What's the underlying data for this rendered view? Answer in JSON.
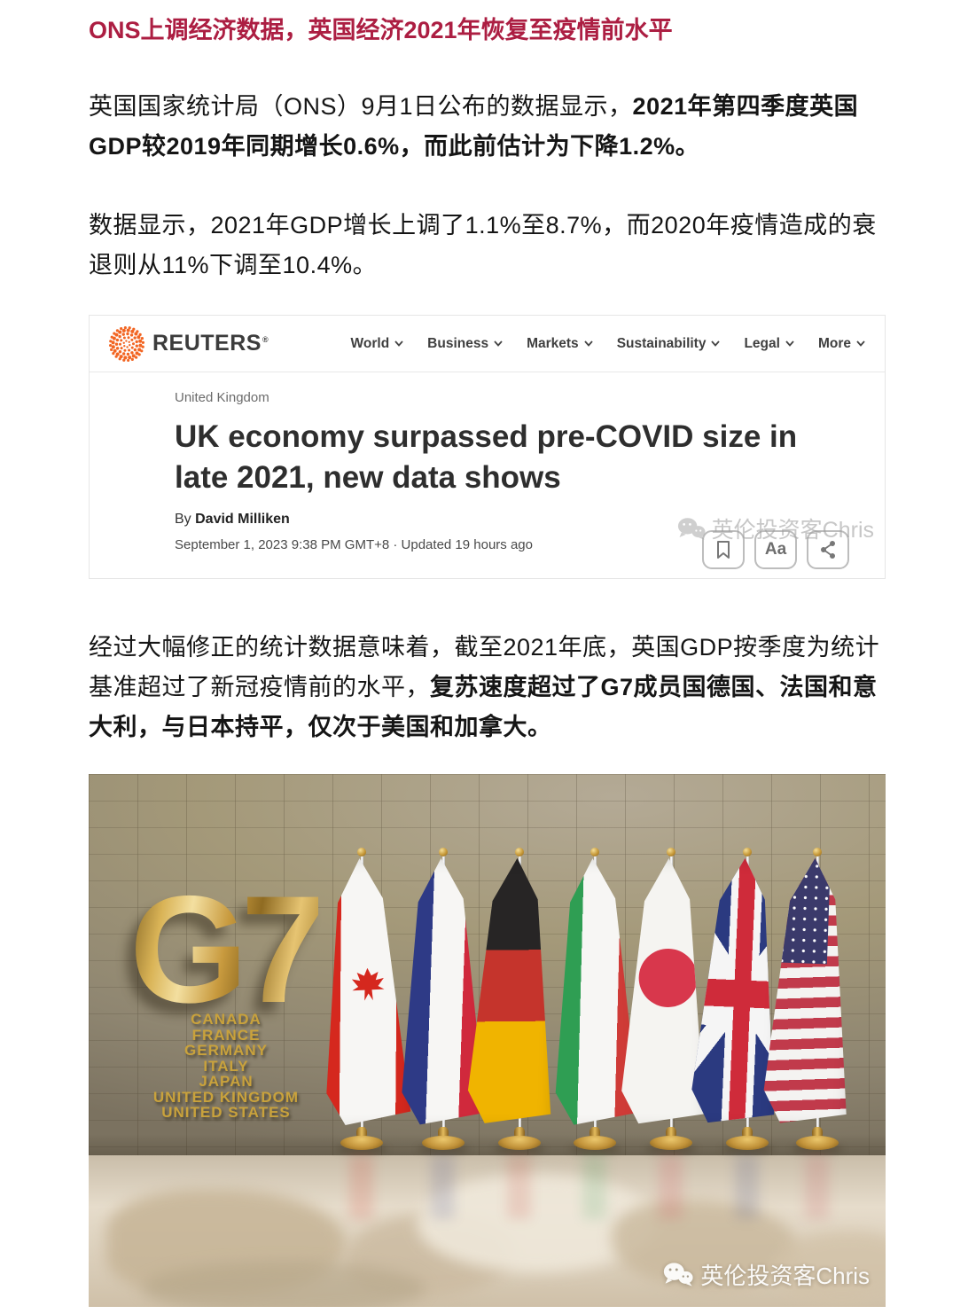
{
  "article": {
    "title": "ONS上调经济数据，英国经济2021年恢复至疫情前水平",
    "paragraphs": [
      {
        "regular": "英国国家统计局（ONS）9月1日公布的数据显示，",
        "bold": "2021年第四季度英国GDP较2019年同期增长0.6%，而此前估计为下降1.2%。"
      },
      {
        "regular": "数据显示，2021年GDP增长上调了1.1%至8.7%，而2020年疫情造成的衰退则从11%下调至10.4%。",
        "bold": ""
      },
      {
        "regular": "经过大幅修正的统计数据意味着，截至2021年底，英国GDP按季度为统计基准超过了新冠疫情前的水平，",
        "bold": "复苏速度超过了G7成员国德国、法国和意大利，与日本持平，仅次于美国和加拿大。"
      }
    ]
  },
  "reuters": {
    "brand": "REUTERS",
    "reg_mark": "®",
    "nav": [
      "World",
      "Business",
      "Markets",
      "Sustainability",
      "Legal",
      "More"
    ],
    "kicker": "United Kingdom",
    "headline": "UK economy surpassed pre-COVID size in late 2021, new data shows",
    "byline_prefix": "By ",
    "author": "David Milliken",
    "dateline": "September 1, 2023 9:38 PM GMT+8 · Updated 19 hours ago",
    "actions": {
      "font_label": "Aa"
    },
    "watermark": "英伦投资客Chris"
  },
  "g7_image": {
    "logo": "G7",
    "countries": [
      "CANADA",
      "FRANCE",
      "GERMANY",
      "ITALY",
      "JAPAN",
      "UNITED KINGDOM",
      "UNITED STATES"
    ],
    "flags": [
      "canada",
      "france",
      "germany",
      "italy",
      "japan",
      "uk",
      "usa"
    ],
    "watermark": "英伦投资客Chris"
  },
  "colors": {
    "title_red": "#ac1e42",
    "reuters_orange": "#f26522",
    "gold_text": "#c9a23c",
    "wall_taupe": "#a49979"
  },
  "icons": {
    "reuters_logo": "dotted-globe",
    "nav_chevron": "chevron-down",
    "bookmark": "bookmark",
    "share": "share-nodes",
    "wechat": "wechat-bubbles"
  }
}
